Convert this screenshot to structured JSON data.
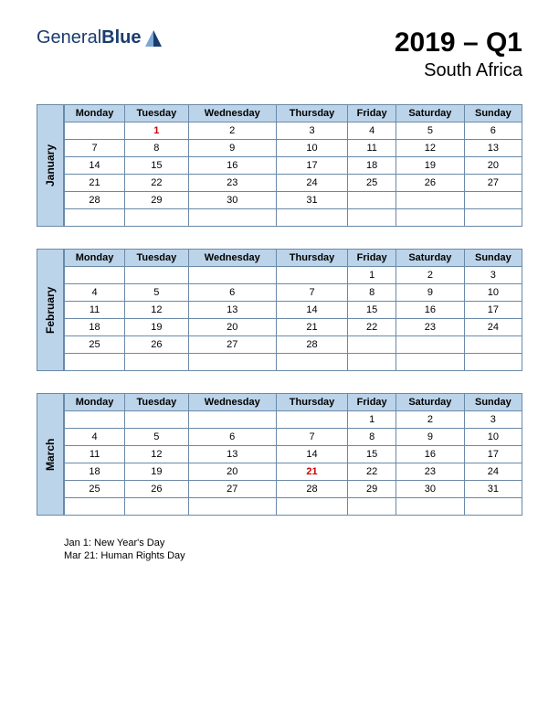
{
  "logo": {
    "word1": "General",
    "word2": "Blue"
  },
  "title": "2019 – Q1",
  "subtitle": "South Africa",
  "colors": {
    "header_bg": "#bcd4ea",
    "border": "#6a89a8",
    "holiday_text": "#cc0000",
    "logo_text": "#1a3d6d",
    "logo_shape_dark": "#1a3d6d",
    "logo_shape_light": "#7ba8d4"
  },
  "day_headers": [
    "Monday",
    "Tuesday",
    "Wednesday",
    "Thursday",
    "Friday",
    "Saturday",
    "Sunday"
  ],
  "months": [
    {
      "name": "January",
      "rows": [
        [
          "",
          {
            "v": "1",
            "holiday": true
          },
          "2",
          "3",
          "4",
          "5",
          "6"
        ],
        [
          "7",
          "8",
          "9",
          "10",
          "11",
          "12",
          "13"
        ],
        [
          "14",
          "15",
          "16",
          "17",
          "18",
          "19",
          "20"
        ],
        [
          "21",
          "22",
          "23",
          "24",
          "25",
          "26",
          "27"
        ],
        [
          "28",
          "29",
          "30",
          "31",
          "",
          "",
          ""
        ],
        [
          "",
          "",
          "",
          "",
          "",
          "",
          ""
        ]
      ]
    },
    {
      "name": "February",
      "rows": [
        [
          "",
          "",
          "",
          "",
          "1",
          "2",
          "3"
        ],
        [
          "4",
          "5",
          "6",
          "7",
          "8",
          "9",
          "10"
        ],
        [
          "11",
          "12",
          "13",
          "14",
          "15",
          "16",
          "17"
        ],
        [
          "18",
          "19",
          "20",
          "21",
          "22",
          "23",
          "24"
        ],
        [
          "25",
          "26",
          "27",
          "28",
          "",
          "",
          ""
        ],
        [
          "",
          "",
          "",
          "",
          "",
          "",
          ""
        ]
      ]
    },
    {
      "name": "March",
      "rows": [
        [
          "",
          "",
          "",
          "",
          "1",
          "2",
          "3"
        ],
        [
          "4",
          "5",
          "6",
          "7",
          "8",
          "9",
          "10"
        ],
        [
          "11",
          "12",
          "13",
          "14",
          "15",
          "16",
          "17"
        ],
        [
          "18",
          "19",
          "20",
          {
            "v": "21",
            "holiday": true
          },
          "22",
          "23",
          "24"
        ],
        [
          "25",
          "26",
          "27",
          "28",
          "29",
          "30",
          "31"
        ],
        [
          "",
          "",
          "",
          "",
          "",
          "",
          ""
        ]
      ]
    }
  ],
  "holidays": [
    "Jan 1: New Year's Day",
    "Mar 21: Human Rights Day"
  ]
}
